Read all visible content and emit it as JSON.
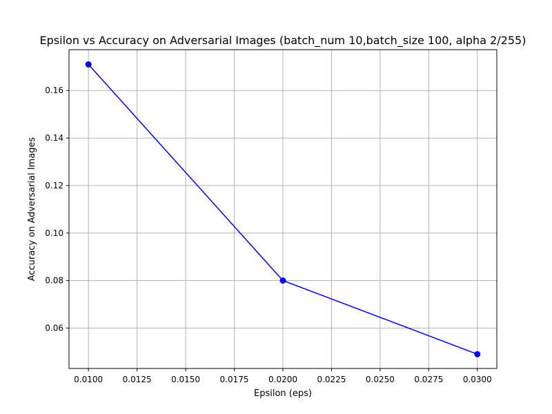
{
  "chart_data": {
    "type": "line",
    "title": "Epsilon vs Accuracy on Adversarial Images (batch_num 10,batch_size 100, alpha 2/255)",
    "xlabel": "Epsilon (eps)",
    "ylabel": "Accuracy on Adversarial Images",
    "xlim": [
      0.009,
      0.031
    ],
    "ylim": [
      0.043,
      0.1772
    ],
    "grid": true,
    "x_ticks": [
      0.01,
      0.0125,
      0.015,
      0.0175,
      0.02,
      0.0225,
      0.025,
      0.0275,
      0.03
    ],
    "x_tick_labels": [
      "0.0100",
      "0.0125",
      "0.0150",
      "0.0175",
      "0.0200",
      "0.0225",
      "0.0250",
      "0.0275",
      "0.0300"
    ],
    "y_ticks": [
      0.06,
      0.08,
      0.1,
      0.12,
      0.14,
      0.16
    ],
    "y_tick_labels": [
      "0.06",
      "0.08",
      "0.10",
      "0.12",
      "0.14",
      "0.16"
    ],
    "series": [
      {
        "color": "#0000ff",
        "marker": "circle",
        "x": [
          0.01,
          0.02,
          0.03
        ],
        "y": [
          0.171,
          0.08,
          0.049
        ]
      }
    ]
  }
}
